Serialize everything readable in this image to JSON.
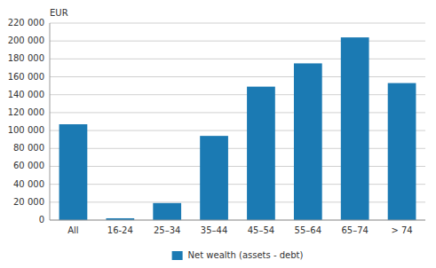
{
  "chart_data": {
    "type": "bar",
    "y_label": "EUR",
    "categories": [
      "All",
      "16-24",
      "25–34",
      "35–44",
      "45–54",
      "55–64",
      "65–74",
      "> 74"
    ],
    "series": [
      {
        "name": "Net wealth (assets - debt)",
        "color": "#1b7ab3",
        "values": [
          107000,
          2000,
          19000,
          94000,
          149000,
          175000,
          204000,
          153000
        ]
      }
    ],
    "ylim": [
      0,
      220000
    ],
    "yticks": [
      0,
      {
        "value": 20000,
        "label": "20 000"
      },
      {
        "value": 40000,
        "label": "40 000"
      },
      {
        "value": 60000,
        "label": "60 000"
      },
      {
        "value": 80000,
        "label": "80 000"
      },
      {
        "value": 100000,
        "label": "100 000"
      },
      {
        "value": 120000,
        "label": "120 000"
      },
      {
        "value": 140000,
        "label": "140 000"
      },
      {
        "value": 160000,
        "label": "160 000"
      },
      {
        "value": 180000,
        "label": "180 000"
      },
      {
        "value": 200000,
        "label": "200 000"
      },
      {
        "value": 220000,
        "label": "220 000"
      }
    ],
    "grid": true,
    "legend": "bottom"
  }
}
